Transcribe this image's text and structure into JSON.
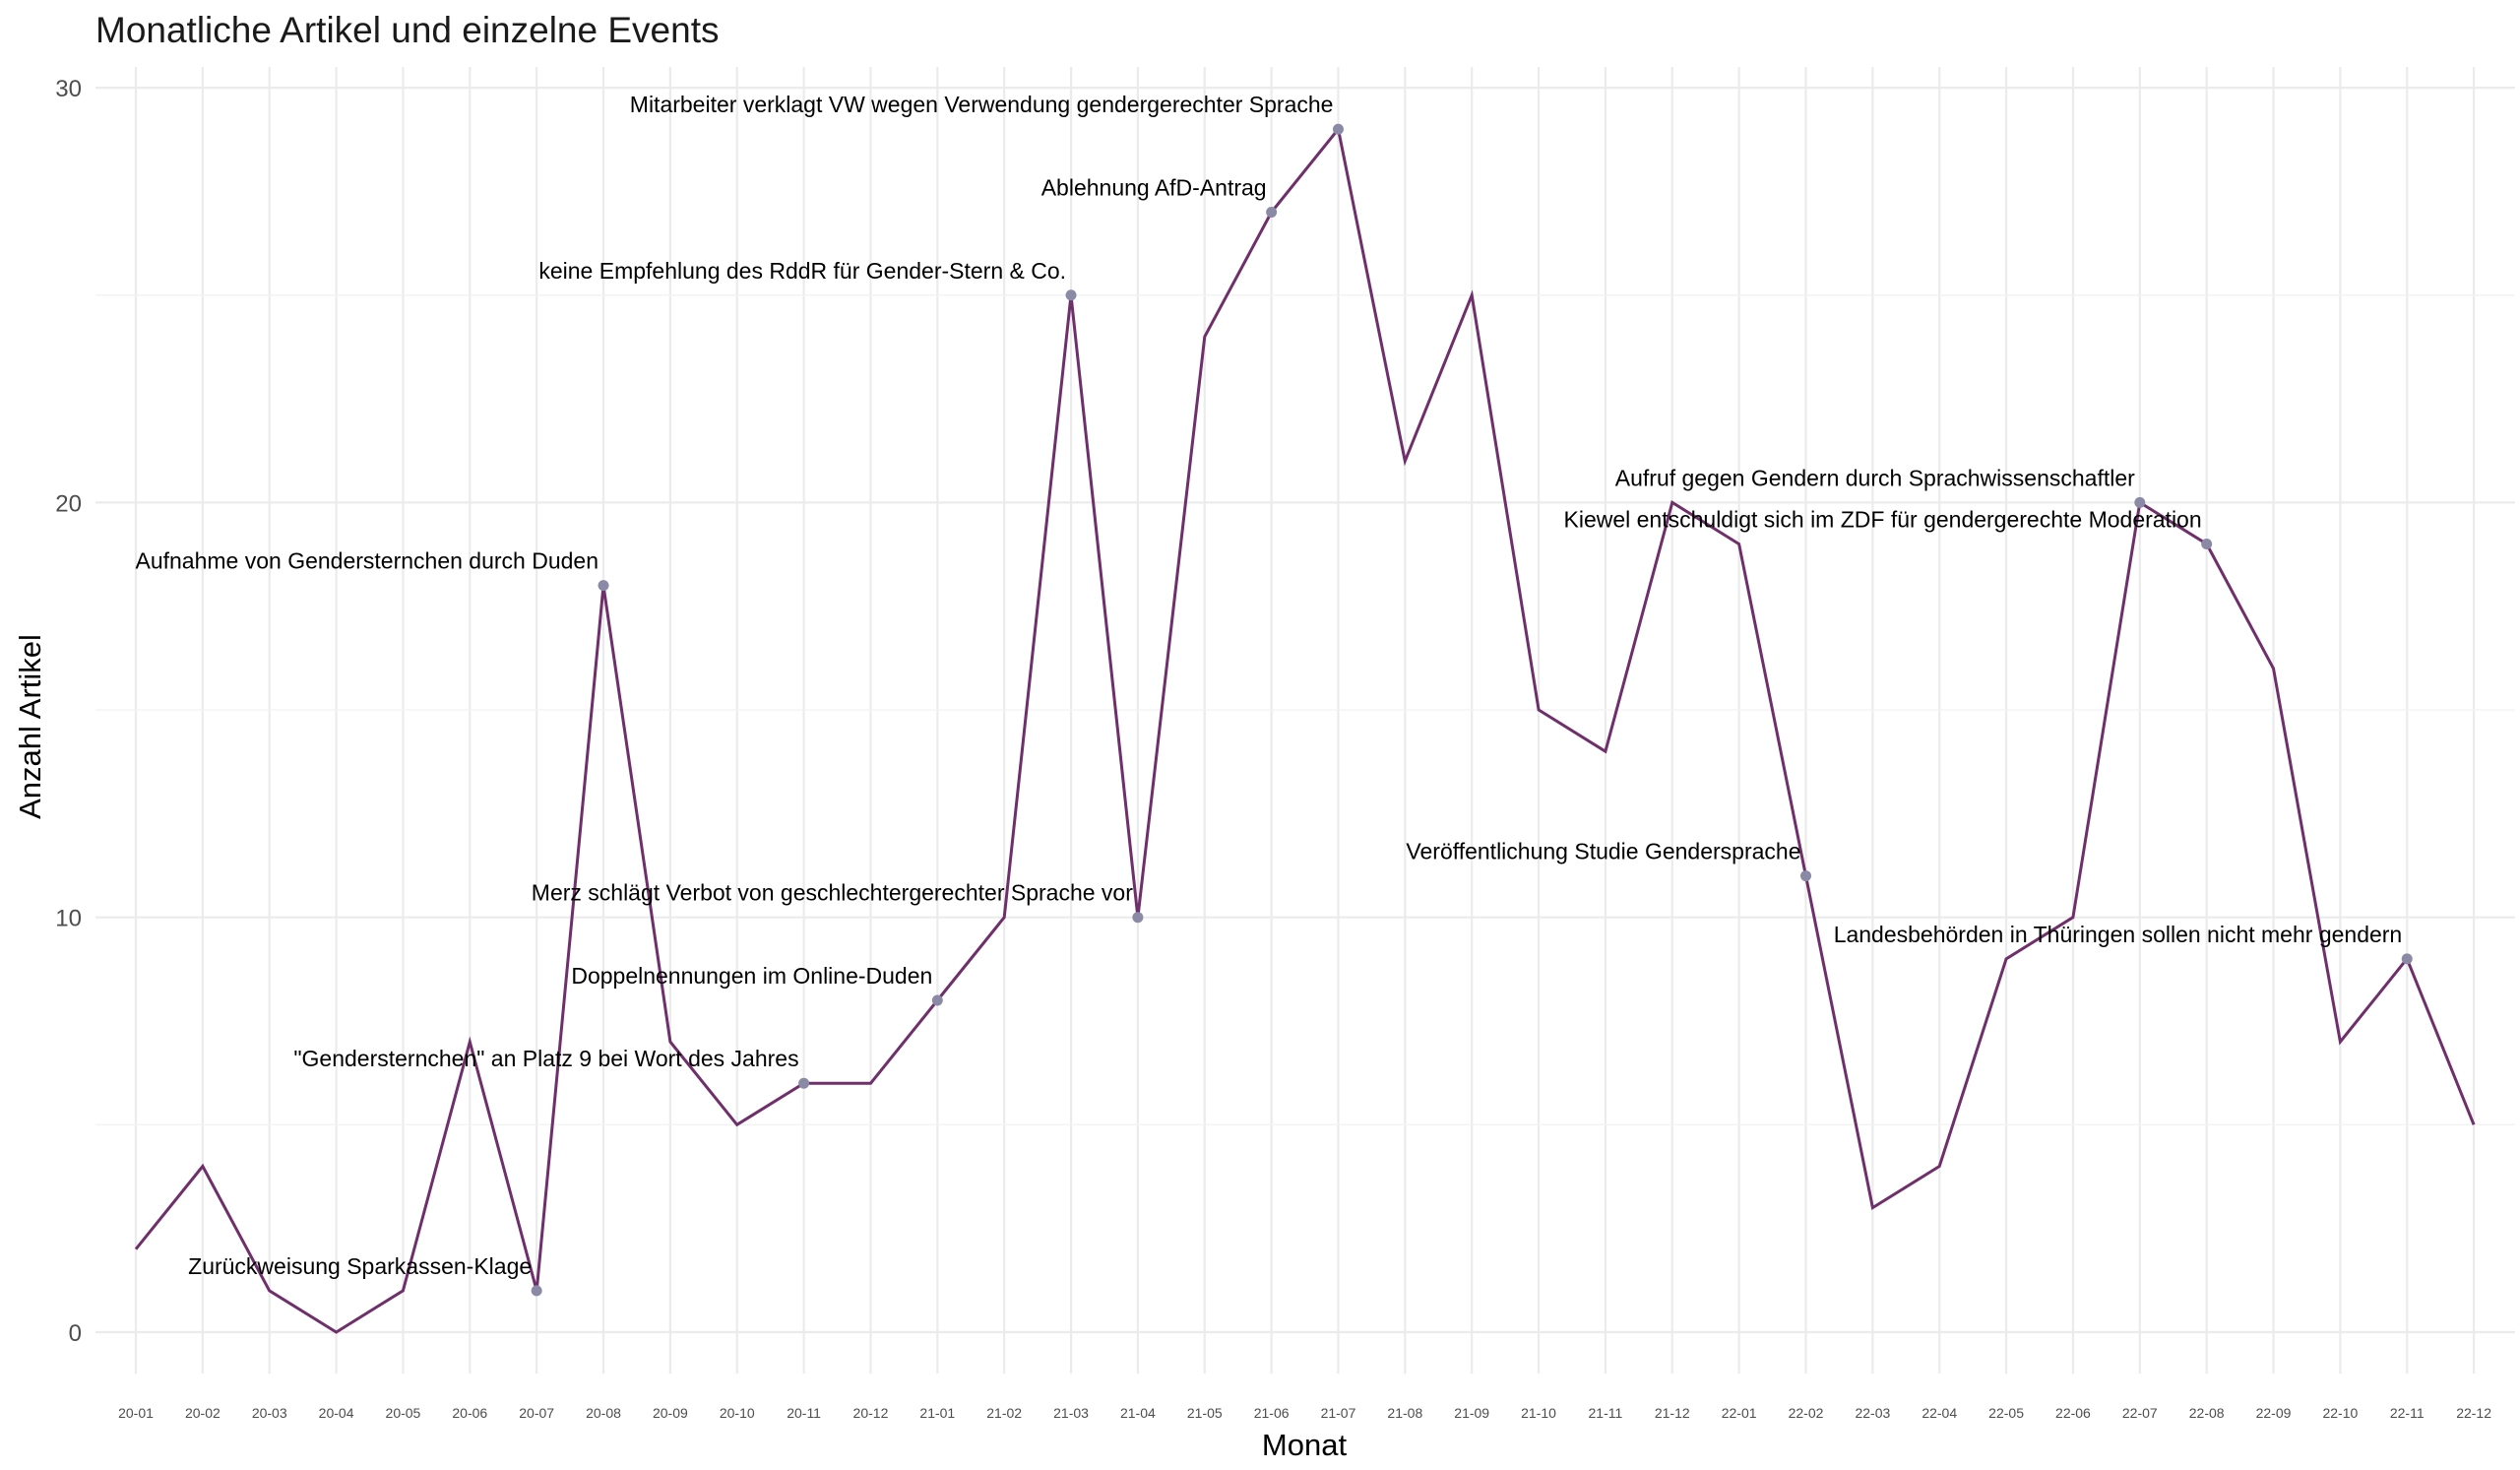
{
  "chart_data": {
    "type": "line",
    "title": "Monatliche Artikel und einzelne Events",
    "xlabel": "Monat",
    "ylabel": "Anzahl Artikel",
    "ylim": [
      -1,
      30.5
    ],
    "yticks": [
      0,
      10,
      20,
      30
    ],
    "grid": true,
    "line_color": "#6e2f6b",
    "point_color": "#8a8aa6",
    "categories": [
      "20-01",
      "20-02",
      "20-03",
      "20-04",
      "20-05",
      "20-06",
      "20-07",
      "20-08",
      "20-09",
      "20-10",
      "20-11",
      "20-12",
      "21-01",
      "21-02",
      "21-03",
      "21-04",
      "21-05",
      "21-06",
      "21-07",
      "21-08",
      "21-09",
      "21-10",
      "21-11",
      "21-12",
      "22-01",
      "22-02",
      "22-03",
      "22-04",
      "22-05",
      "22-06",
      "22-07",
      "22-08",
      "22-09",
      "22-10",
      "22-11",
      "22-12"
    ],
    "values": [
      2,
      4,
      1,
      0,
      1,
      7,
      1,
      18,
      7,
      5,
      6,
      6,
      8,
      10,
      25,
      10,
      24,
      27,
      29,
      21,
      25,
      15,
      14,
      20,
      19,
      11,
      3,
      4,
      9,
      10,
      20,
      19,
      16,
      7,
      9,
      5
    ],
    "annotations": [
      {
        "x": "20-07",
        "y": 1,
        "text": "Zurückweisung Sparkassen-Klage"
      },
      {
        "x": "20-08",
        "y": 18,
        "text": "Aufnahme von Gendersternchen durch Duden"
      },
      {
        "x": "20-11",
        "y": 6,
        "text": "\"Gendersternchen\" an Platz 9 bei Wort des Jahres"
      },
      {
        "x": "21-01",
        "y": 8,
        "text": "Doppelnennungen im Online-Duden"
      },
      {
        "x": "21-03",
        "y": 25,
        "text": "keine Empfehlung des RddR für Gender-Stern & Co."
      },
      {
        "x": "21-04",
        "y": 10,
        "text": "Merz schlägt Verbot von geschlechtergerechter Sprache vor"
      },
      {
        "x": "21-06",
        "y": 27,
        "text": "Ablehnung AfD-Antrag"
      },
      {
        "x": "21-07",
        "y": 29,
        "text": "Mitarbeiter verklagt VW wegen Verwendung gendergerechter Sprache"
      },
      {
        "x": "22-02",
        "y": 11,
        "text": "Veröffentlichung Studie Gendersprache"
      },
      {
        "x": "22-07",
        "y": 20,
        "text": "Aufruf gegen Gendern durch Sprachwissenschaftler"
      },
      {
        "x": "22-08",
        "y": 19,
        "text": "Kiewel entschuldigt sich im ZDF für gendergerechte Moderation"
      },
      {
        "x": "22-11",
        "y": 9,
        "text": "Landesbehörden in Thüringen sollen nicht mehr gendern"
      }
    ]
  }
}
